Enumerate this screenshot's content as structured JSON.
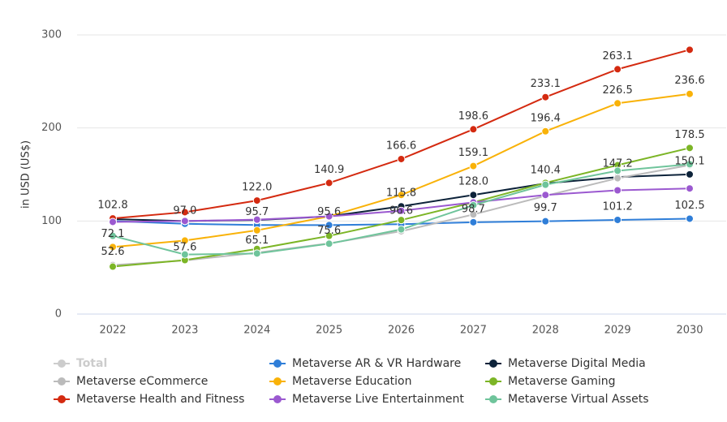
{
  "chart_data": {
    "type": "line",
    "y_axis_label": "in USD (US$)",
    "categories": [
      "2022",
      "2023",
      "2024",
      "2025",
      "2026",
      "2027",
      "2028",
      "2029",
      "2030"
    ],
    "ylim": [
      0,
      300
    ],
    "yticks": [
      0,
      100,
      200,
      300
    ],
    "grid": true,
    "hidden_series": [
      {
        "name": "Total",
        "color": "#cccccc"
      }
    ],
    "series": [
      {
        "name": "Metaverse AR & VR Hardware",
        "color": "#2f7ed8",
        "values": [
          100,
          97.0,
          95.7,
          95.6,
          96.6,
          98.7,
          99.7,
          101.2,
          102.5
        ],
        "value_labels": [
          null,
          "97.0",
          "95.7",
          "95.6",
          "96.6",
          "98.7",
          "99.7",
          "101.2",
          "102.5"
        ]
      },
      {
        "name": "Metaverse Digital Media",
        "color": "#0d233a",
        "values": [
          102,
          100,
          101,
          105,
          115.8,
          128.0,
          140.4,
          147.2,
          150.1
        ],
        "value_labels": [
          null,
          null,
          null,
          null,
          "115.8",
          "128.0",
          "140.4",
          "147.2",
          "150.1"
        ]
      },
      {
        "name": "Metaverse eCommerce",
        "color": "#bbbbbb",
        "values": [
          52.6,
          57.6,
          66,
          76,
          89,
          107,
          127,
          146,
          160
        ],
        "value_labels": [
          "52.6",
          "57.6",
          null,
          null,
          null,
          null,
          null,
          null,
          null
        ]
      },
      {
        "name": "Metaverse Education",
        "color": "#f9b208",
        "values": [
          72.1,
          79,
          90,
          105,
          128,
          159.1,
          196.4,
          226.5,
          236.6
        ],
        "value_labels": [
          "72.1",
          null,
          null,
          null,
          null,
          "159.1",
          "196.4",
          "226.5",
          "236.6"
        ]
      },
      {
        "name": "Metaverse Gaming",
        "color": "#7cb526",
        "values": [
          51,
          58,
          70,
          84,
          101,
          120,
          141,
          160,
          178.5
        ],
        "value_labels": [
          null,
          null,
          null,
          null,
          null,
          null,
          null,
          null,
          "178.5"
        ]
      },
      {
        "name": "Metaverse Health and Fitness",
        "color": "#d42a10",
        "values": [
          102.8,
          109.5,
          122.0,
          140.9,
          166.6,
          198.6,
          233.1,
          263.1,
          284
        ],
        "value_labels": [
          "102.8",
          null,
          "122.0",
          "140.9",
          "166.6",
          "198.6",
          "233.1",
          "263.1",
          null
        ]
      },
      {
        "name": "Metaverse Live Entertainment",
        "color": "#9b59d0",
        "values": [
          99,
          100,
          101.5,
          105,
          111,
          120,
          128,
          133,
          135
        ],
        "value_labels": [
          null,
          null,
          null,
          null,
          null,
          null,
          null,
          null,
          null
        ]
      },
      {
        "name": "Metaverse Virtual Assets",
        "color": "#6fc49b",
        "values": [
          84,
          64,
          65.1,
          75.6,
          91,
          117,
          139,
          154,
          161
        ],
        "value_labels": [
          null,
          null,
          "65.1",
          "75.6",
          null,
          null,
          null,
          null,
          null
        ]
      }
    ]
  }
}
